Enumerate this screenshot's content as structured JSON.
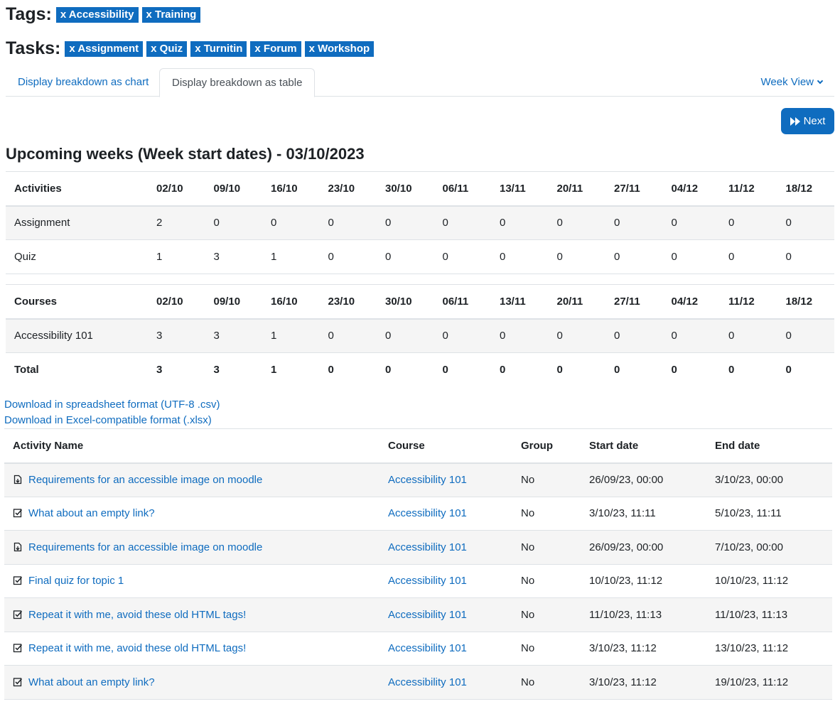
{
  "tags": {
    "label": "Tags:",
    "chips": [
      "x Accessibility",
      "x Training"
    ]
  },
  "tasks": {
    "label": "Tasks:",
    "chips": [
      "x Assignment",
      "x Quiz",
      "x Turnitin",
      "x Forum",
      "x Workshop"
    ]
  },
  "tabs": {
    "chart": "Display breakdown as chart",
    "table": "Display breakdown as table",
    "week_view": "Week View"
  },
  "next_label": "Next",
  "upcoming_title": "Upcoming weeks (Week start dates) - 03/10/2023",
  "weeks": [
    "02/10",
    "09/10",
    "16/10",
    "23/10",
    "30/10",
    "06/11",
    "13/11",
    "20/11",
    "27/11",
    "04/12",
    "11/12",
    "18/12"
  ],
  "activities_table": {
    "header": "Activities",
    "rows": [
      {
        "name": "Assignment",
        "values": [
          "2",
          "0",
          "0",
          "0",
          "0",
          "0",
          "0",
          "0",
          "0",
          "0",
          "0",
          "0"
        ]
      },
      {
        "name": "Quiz",
        "values": [
          "1",
          "3",
          "1",
          "0",
          "0",
          "0",
          "0",
          "0",
          "0",
          "0",
          "0",
          "0"
        ]
      }
    ]
  },
  "courses_table": {
    "header": "Courses",
    "rows": [
      {
        "name": "Accessibility 101",
        "values": [
          "3",
          "3",
          "1",
          "0",
          "0",
          "0",
          "0",
          "0",
          "0",
          "0",
          "0",
          "0"
        ]
      }
    ],
    "total": {
      "name": "Total",
      "values": [
        "3",
        "3",
        "1",
        "0",
        "0",
        "0",
        "0",
        "0",
        "0",
        "0",
        "0",
        "0"
      ]
    }
  },
  "downloads": {
    "csv": "Download in spreadsheet format (UTF-8 .csv)",
    "xlsx": "Download in Excel-compatible format (.xlsx)"
  },
  "list": {
    "headers": {
      "name": "Activity Name",
      "course": "Course",
      "group": "Group",
      "start": "Start date",
      "end": "End date"
    },
    "rows": [
      {
        "icon": "assignment-icon",
        "name": "Requirements for an accessible image on moodle",
        "course": "Accessibility 101",
        "group": "No",
        "start": "26/09/23, 00:00",
        "end": "3/10/23, 00:00"
      },
      {
        "icon": "quiz-icon",
        "name": "What about an empty link?",
        "course": "Accessibility 101",
        "group": "No",
        "start": "3/10/23, 11:11",
        "end": "5/10/23, 11:11"
      },
      {
        "icon": "assignment-icon",
        "name": "Requirements for an accessible image on moodle",
        "course": "Accessibility 101",
        "group": "No",
        "start": "26/09/23, 00:00",
        "end": "7/10/23, 00:00"
      },
      {
        "icon": "quiz-icon",
        "name": "Final quiz for topic 1",
        "course": "Accessibility 101",
        "group": "No",
        "start": "10/10/23, 11:12",
        "end": "10/10/23, 11:12"
      },
      {
        "icon": "quiz-icon",
        "name": "Repeat it with me, avoid these old HTML tags!",
        "course": "Accessibility 101",
        "group": "No",
        "start": "11/10/23, 11:13",
        "end": "11/10/23, 11:13"
      },
      {
        "icon": "quiz-icon",
        "name": "Repeat it with me, avoid these old HTML tags!",
        "course": "Accessibility 101",
        "group": "No",
        "start": "3/10/23, 11:12",
        "end": "13/10/23, 11:12"
      },
      {
        "icon": "quiz-icon",
        "name": "What about an empty link?",
        "course": "Accessibility 101",
        "group": "No",
        "start": "3/10/23, 11:12",
        "end": "19/10/23, 11:12"
      }
    ]
  },
  "colors": {
    "primary": "#0f6cbf",
    "stripe": "#f5f5f5",
    "border": "#dee2e6"
  }
}
